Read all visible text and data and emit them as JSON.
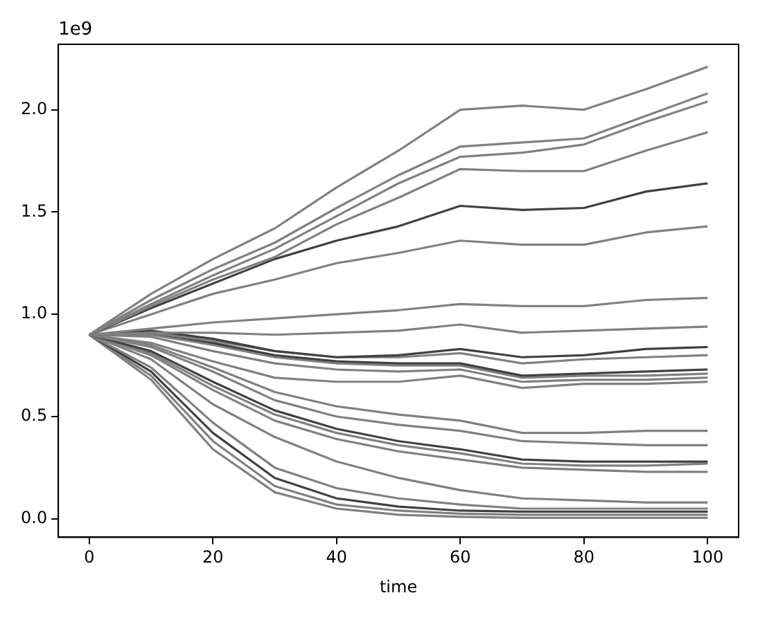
{
  "chart_data": {
    "type": "line",
    "xlabel": "time",
    "annotations": [
      "1e9"
    ],
    "x": [
      0,
      10,
      20,
      30,
      40,
      50,
      60,
      70,
      80,
      90,
      100
    ],
    "xlim": [
      -5,
      105
    ],
    "xticks": [
      0,
      20,
      40,
      60,
      80,
      100
    ],
    "ylim": [
      -0.09,
      2.32
    ],
    "yticks": [
      {
        "value": 0,
        "label": "0.0"
      },
      {
        "value": 0.5,
        "label": "0.5"
      },
      {
        "value": 1,
        "label": "1.0"
      },
      {
        "value": 1.5,
        "label": "1.5"
      },
      {
        "value": 2,
        "label": "2.0"
      }
    ],
    "grid": false,
    "legend": false,
    "marker": "none",
    "line_style": "solid",
    "series": [
      {
        "color": "#808080",
        "values": [
          0.9,
          1.1,
          1.27,
          1.42,
          1.62,
          1.8,
          2.0,
          2.02,
          2.0,
          2.1,
          2.21
        ]
      },
      {
        "color": "#808080",
        "values": [
          0.9,
          1.07,
          1.22,
          1.35,
          1.52,
          1.68,
          1.82,
          1.84,
          1.86,
          1.97,
          2.08
        ]
      },
      {
        "color": "#808080",
        "values": [
          0.9,
          1.05,
          1.19,
          1.32,
          1.48,
          1.64,
          1.77,
          1.79,
          1.83,
          1.94,
          2.04
        ]
      },
      {
        "color": "#808080",
        "values": [
          0.9,
          1.04,
          1.17,
          1.28,
          1.44,
          1.57,
          1.71,
          1.7,
          1.7,
          1.8,
          1.89
        ]
      },
      {
        "color": "#404040",
        "values": [
          0.9,
          1.03,
          1.15,
          1.27,
          1.36,
          1.43,
          1.53,
          1.51,
          1.52,
          1.6,
          1.64
        ]
      },
      {
        "color": "#808080",
        "values": [
          0.9,
          1.0,
          1.1,
          1.17,
          1.25,
          1.3,
          1.36,
          1.34,
          1.34,
          1.4,
          1.43
        ]
      },
      {
        "color": "#808080",
        "values": [
          0.9,
          0.93,
          0.96,
          0.98,
          1.0,
          1.02,
          1.05,
          1.04,
          1.04,
          1.07,
          1.08
        ]
      },
      {
        "color": "#808080",
        "values": [
          0.9,
          0.91,
          0.91,
          0.9,
          0.91,
          0.92,
          0.95,
          0.91,
          0.92,
          0.93,
          0.94
        ]
      },
      {
        "color": "#404040",
        "values": [
          0.9,
          0.92,
          0.88,
          0.82,
          0.79,
          0.8,
          0.83,
          0.79,
          0.8,
          0.83,
          0.84
        ]
      },
      {
        "color": "#808080",
        "values": [
          0.9,
          0.91,
          0.87,
          0.82,
          0.79,
          0.79,
          0.81,
          0.76,
          0.78,
          0.79,
          0.8
        ]
      },
      {
        "color": "#404040",
        "values": [
          0.9,
          0.91,
          0.86,
          0.8,
          0.77,
          0.76,
          0.76,
          0.7,
          0.71,
          0.72,
          0.73
        ]
      },
      {
        "color": "#808080",
        "values": [
          0.9,
          0.9,
          0.85,
          0.79,
          0.76,
          0.75,
          0.75,
          0.69,
          0.7,
          0.7,
          0.71
        ]
      },
      {
        "color": "#808080",
        "values": [
          0.9,
          0.89,
          0.82,
          0.76,
          0.73,
          0.72,
          0.73,
          0.67,
          0.68,
          0.68,
          0.69
        ]
      },
      {
        "color": "#808080",
        "values": [
          0.9,
          0.86,
          0.77,
          0.69,
          0.67,
          0.67,
          0.7,
          0.64,
          0.66,
          0.66,
          0.67
        ]
      },
      {
        "color": "#808080",
        "values": [
          0.9,
          0.85,
          0.74,
          0.62,
          0.55,
          0.51,
          0.48,
          0.42,
          0.42,
          0.43,
          0.43
        ]
      },
      {
        "color": "#808080",
        "values": [
          0.9,
          0.84,
          0.72,
          0.58,
          0.5,
          0.46,
          0.43,
          0.38,
          0.37,
          0.36,
          0.36
        ]
      },
      {
        "color": "#404040",
        "values": [
          0.9,
          0.82,
          0.67,
          0.53,
          0.44,
          0.38,
          0.34,
          0.29,
          0.28,
          0.28,
          0.28
        ]
      },
      {
        "color": "#808080",
        "values": [
          0.9,
          0.81,
          0.65,
          0.51,
          0.42,
          0.36,
          0.32,
          0.27,
          0.26,
          0.26,
          0.27
        ]
      },
      {
        "color": "#808080",
        "values": [
          0.9,
          0.8,
          0.63,
          0.48,
          0.39,
          0.33,
          0.29,
          0.25,
          0.24,
          0.23,
          0.23
        ]
      },
      {
        "color": "#808080",
        "values": [
          0.9,
          0.78,
          0.56,
          0.4,
          0.28,
          0.2,
          0.14,
          0.1,
          0.09,
          0.08,
          0.08
        ]
      },
      {
        "color": "#808080",
        "values": [
          0.9,
          0.74,
          0.47,
          0.25,
          0.15,
          0.1,
          0.07,
          0.05,
          0.05,
          0.05,
          0.05
        ]
      },
      {
        "color": "#404040",
        "values": [
          0.9,
          0.72,
          0.42,
          0.2,
          0.1,
          0.06,
          0.04,
          0.035,
          0.035,
          0.035,
          0.035
        ]
      },
      {
        "color": "#808080",
        "values": [
          0.9,
          0.7,
          0.38,
          0.16,
          0.07,
          0.04,
          0.025,
          0.02,
          0.02,
          0.02,
          0.02
        ]
      },
      {
        "color": "#808080",
        "values": [
          0.9,
          0.68,
          0.34,
          0.13,
          0.05,
          0.02,
          0.01,
          0.005,
          0.005,
          0.005,
          0.005
        ]
      }
    ]
  }
}
